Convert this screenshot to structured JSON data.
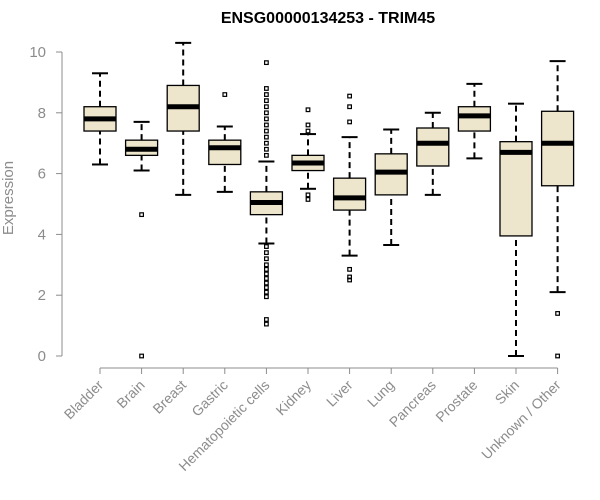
{
  "chart_data": {
    "type": "box",
    "title": "ENSG00000134253 - TRIM45",
    "xlabel": "",
    "ylabel": "Expression",
    "ylim": [
      0,
      10
    ],
    "yticks": [
      0,
      2,
      4,
      6,
      8,
      10
    ],
    "box_fill": "#ede6cc",
    "categories": [
      "Bladder",
      "Brain",
      "Breast",
      "Gastric",
      "Hematopoietic cells",
      "Kidney",
      "Liver",
      "Lung",
      "Pancreas",
      "Prostate",
      "Skin",
      "Unknown / Other"
    ],
    "boxes": [
      {
        "label": "Bladder",
        "min": 6.3,
        "q1": 7.4,
        "median": 7.8,
        "q3": 8.2,
        "max": 9.3,
        "outliers": []
      },
      {
        "label": "Brain",
        "min": 6.1,
        "q1": 6.6,
        "median": 6.8,
        "q3": 7.1,
        "max": 7.7,
        "outliers": [
          4.65,
          0.0
        ]
      },
      {
        "label": "Breast",
        "min": 5.3,
        "q1": 7.4,
        "median": 8.2,
        "q3": 8.9,
        "max": 10.3,
        "outliers": []
      },
      {
        "label": "Gastric",
        "min": 5.4,
        "q1": 6.3,
        "median": 6.85,
        "q3": 7.1,
        "max": 7.55,
        "outliers": [
          8.6
        ]
      },
      {
        "label": "Hematopoietic cells",
        "min": 3.7,
        "q1": 4.65,
        "median": 5.05,
        "q3": 5.4,
        "max": 6.4,
        "outliers": [
          9.65,
          8.8,
          8.6,
          8.4,
          8.2,
          8.0,
          7.8,
          7.6,
          7.4,
          7.2,
          7.0,
          6.8,
          6.6,
          3.6,
          3.4,
          3.2,
          3.0,
          2.85,
          2.7,
          2.55,
          2.4,
          2.25,
          2.1,
          1.95,
          1.2,
          1.05
        ]
      },
      {
        "label": "Kidney",
        "min": 5.5,
        "q1": 6.1,
        "median": 6.35,
        "q3": 6.6,
        "max": 7.3,
        "outliers": [
          8.1,
          7.6,
          7.4,
          5.3,
          5.15
        ]
      },
      {
        "label": "Liver",
        "min": 3.3,
        "q1": 4.8,
        "median": 5.2,
        "q3": 5.85,
        "max": 7.2,
        "outliers": [
          8.55,
          8.2,
          7.7,
          2.85,
          2.6,
          2.5
        ]
      },
      {
        "label": "Lung",
        "min": 3.65,
        "q1": 5.3,
        "median": 6.05,
        "q3": 6.65,
        "max": 7.45,
        "outliers": []
      },
      {
        "label": "Pancreas",
        "min": 5.3,
        "q1": 6.25,
        "median": 7.0,
        "q3": 7.5,
        "max": 8.0,
        "outliers": []
      },
      {
        "label": "Prostate",
        "min": 6.5,
        "q1": 7.4,
        "median": 7.9,
        "q3": 8.2,
        "max": 8.95,
        "outliers": []
      },
      {
        "label": "Skin",
        "min": 0.0,
        "q1": 3.95,
        "median": 6.7,
        "q3": 7.05,
        "max": 8.3,
        "outliers": []
      },
      {
        "label": "Unknown / Other",
        "min": 2.1,
        "q1": 5.6,
        "median": 7.0,
        "q3": 8.05,
        "max": 9.7,
        "outliers": [
          1.4,
          0.0
        ]
      }
    ]
  }
}
